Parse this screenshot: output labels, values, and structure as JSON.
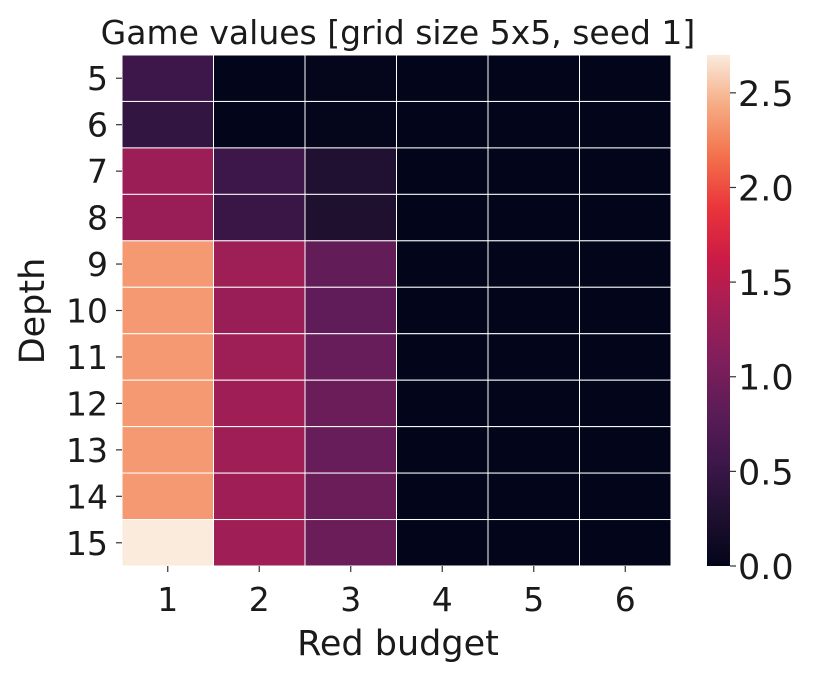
{
  "chart_data": {
    "type": "heatmap",
    "title": "Game values [grid size 5x5, seed 1]",
    "xlabel": "Red budget",
    "ylabel": "Depth",
    "x_categories": [
      "1",
      "2",
      "3",
      "4",
      "5",
      "6"
    ],
    "y_categories": [
      "5",
      "6",
      "7",
      "8",
      "9",
      "10",
      "11",
      "12",
      "13",
      "14",
      "15"
    ],
    "values": [
      [
        0.55,
        0.0,
        0.02,
        0.0,
        0.0,
        0.0
      ],
      [
        0.45,
        0.0,
        0.02,
        0.0,
        0.0,
        0.0
      ],
      [
        1.3,
        0.55,
        0.28,
        0.0,
        0.0,
        0.0
      ],
      [
        1.28,
        0.52,
        0.27,
        0.0,
        0.0,
        0.0
      ],
      [
        2.35,
        1.32,
        0.86,
        0.0,
        0.0,
        0.0
      ],
      [
        2.35,
        1.28,
        0.84,
        0.0,
        0.0,
        0.0
      ],
      [
        2.35,
        1.32,
        0.9,
        0.0,
        0.0,
        0.0
      ],
      [
        2.35,
        1.33,
        0.92,
        0.0,
        0.0,
        0.0
      ],
      [
        2.35,
        1.33,
        0.9,
        0.0,
        0.0,
        0.0
      ],
      [
        2.35,
        1.33,
        0.92,
        0.0,
        0.0,
        0.0
      ],
      [
        2.7,
        1.33,
        0.92,
        0.0,
        0.0,
        0.0
      ]
    ],
    "colorbar": {
      "min": 0.0,
      "max": 2.7,
      "ticks": [
        0.0,
        0.5,
        1.0,
        1.5,
        2.0,
        2.5
      ],
      "tick_labels": [
        "0.0",
        "0.5",
        "1.0",
        "1.5",
        "2.0",
        "2.5"
      ],
      "colormap": "rocket"
    },
    "grid": true,
    "cell_line_color": "#ffffff"
  }
}
